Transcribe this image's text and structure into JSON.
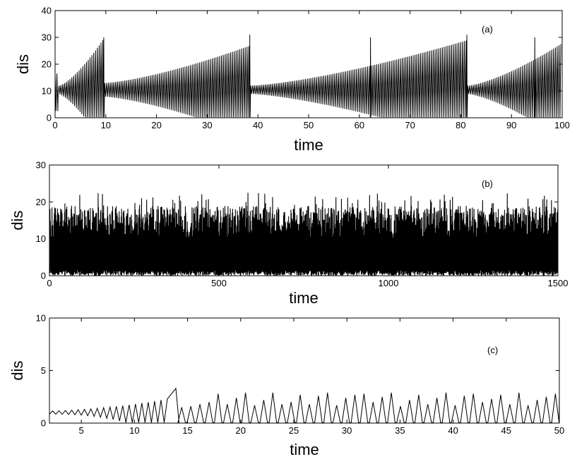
{
  "chart_data": [
    {
      "type": "line",
      "panel_label": "(a)",
      "xlabel": "time",
      "ylabel": "dis",
      "xlim": [
        0,
        100
      ],
      "ylim": [
        0,
        40
      ],
      "xticks": [
        0,
        10,
        20,
        30,
        40,
        50,
        60,
        70,
        80,
        90,
        100
      ],
      "yticks": [
        0,
        10,
        20,
        30,
        40
      ],
      "grid": false,
      "series": [
        {
          "line_color": "#000000",
          "description_kind": "bursting oscillation",
          "baseline": 10.5,
          "trough_min": 0.2,
          "reset_times": [
            0.6,
            9.6,
            38.4,
            81.2
          ],
          "burst_envelope": [
            {
              "start": 0.6,
              "end": 9.6,
              "start_peak": 12,
              "end_peak": 30
            },
            {
              "start": 9.6,
              "end": 38.4,
              "start_peak": 13,
              "end_peak": 27
            },
            {
              "start": 38.4,
              "end": 81.2,
              "start_peak": 12,
              "end_peak": 29
            },
            {
              "start": 81.2,
              "end": 100,
              "start_peak": 12,
              "end_peak": 28
            }
          ],
          "highlight_peaks": [
            {
              "x": 9.6,
              "y": 30
            },
            {
              "x": 38.4,
              "y": 31
            },
            {
              "x": 62.2,
              "y": 30
            },
            {
              "x": 81.2,
              "y": 31
            },
            {
              "x": 94.6,
              "y": 30
            }
          ],
          "period": 0.36
        }
      ]
    },
    {
      "type": "line",
      "panel_label": "(b)",
      "xlabel": "time",
      "ylabel": "dis",
      "xlim": [
        0,
        1500
      ],
      "ylim": [
        0,
        30
      ],
      "xticks": [
        0,
        500,
        1000,
        1500
      ],
      "yticks": [
        0,
        10,
        20,
        30
      ],
      "grid": false,
      "series": [
        {
          "line_color": "#000000",
          "description_kind": "dense chaotic oscillation",
          "value_range": [
            0,
            22.5
          ],
          "typical_peak": 18,
          "max_peak": 22.5
        }
      ]
    },
    {
      "type": "line",
      "panel_label": "(c)",
      "xlabel": "time",
      "ylabel": "dis",
      "xlim": [
        2,
        50
      ],
      "ylim": [
        0,
        10
      ],
      "xticks": [
        5,
        10,
        15,
        20,
        25,
        30,
        35,
        40,
        45,
        50
      ],
      "yticks": [
        0,
        5,
        10
      ],
      "grid": false,
      "series": [
        {
          "line_color": "#000000",
          "description_kind": "growing oscillation with spikes",
          "initial_center": 1.0,
          "initial_amplitude": 0.15,
          "period": 0.6,
          "reset_times": [
            13.9
          ],
          "spike_period": 1.1,
          "max_peak": 3.3,
          "peaks_after_reset": [
            1.5,
            1.6,
            1.8,
            2.0,
            2.8,
            1.8,
            2.4,
            2.9,
            1.7,
            2.2,
            2.9,
            1.8,
            2.0,
            2.7,
            1.8,
            2.6,
            2.9,
            1.7,
            2.4,
            2.7,
            2.8,
            2.0,
            2.5,
            2.9,
            1.6,
            2.2,
            2.7,
            1.8,
            2.4,
            2.9,
            1.7,
            2.6,
            2.8,
            2.0,
            2.3,
            2.7,
            1.8,
            2.9,
            1.7,
            2.2,
            2.5,
            2.8,
            2.0,
            2.9,
            1.8,
            2.3,
            2.6
          ]
        }
      ]
    }
  ]
}
